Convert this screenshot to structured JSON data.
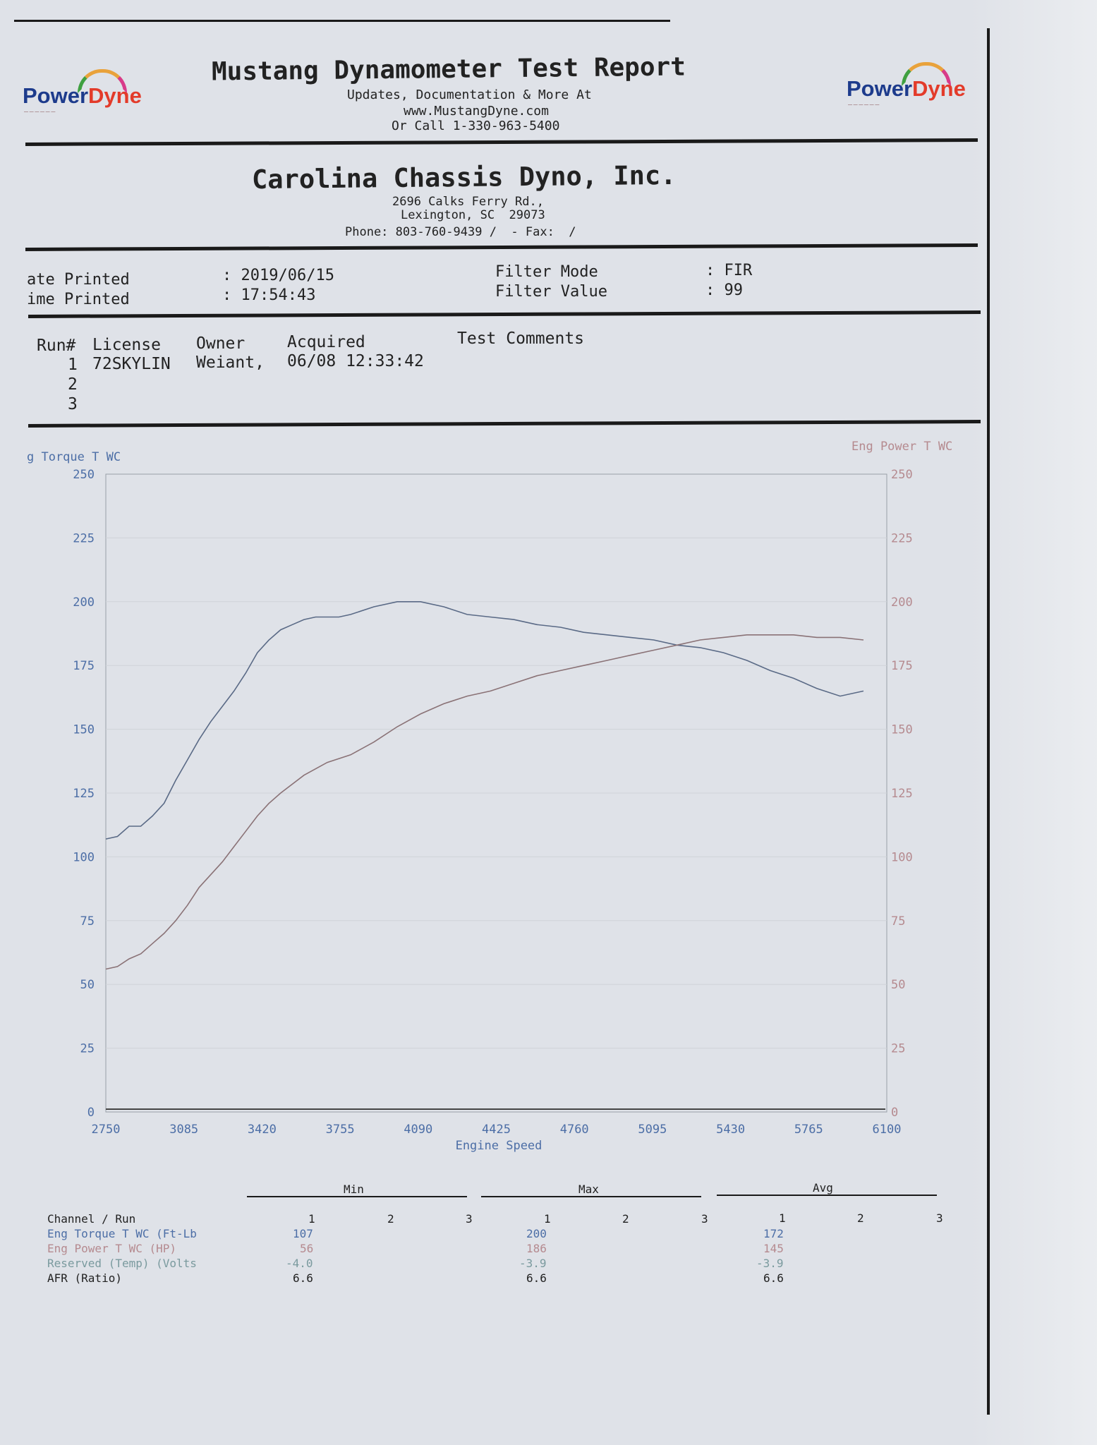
{
  "header": {
    "title": "Mustang Dynamometer Test Report",
    "line1": "Updates, Documentation & More At",
    "line2": "www.MustangDyne.com",
    "line3": "Or Call 1-330-963-5400",
    "logo_left": {
      "part1": "Power",
      "part2": "Dyne"
    },
    "logo_right": {
      "part1": "Power",
      "part2": "Dyne"
    }
  },
  "company": {
    "name": "Carolina Chassis Dyno, Inc.",
    "address1": "2696 Calks Ferry Rd.,",
    "address2": "Lexington, SC  29073",
    "phone": "Phone: 803-760-9439 /  - Fax:  /"
  },
  "meta": {
    "date_label": "ate Printed",
    "date_value": ": 2019/06/15",
    "time_label": "ime Printed",
    "time_value": ": 17:54:43",
    "filter_mode_label": "Filter Mode",
    "filter_mode_value": ": FIR",
    "filter_value_label": "Filter Value",
    "filter_value_value": ": 99"
  },
  "runs": {
    "headers": [
      "Run#",
      "License",
      "Owner",
      "Acquired",
      "Test Comments"
    ],
    "rows": [
      {
        "run": "1",
        "license": "72SKYLIN",
        "owner": "Weiant,",
        "acquired": "06/08 12:33:42"
      },
      {
        "run": "2",
        "license": "",
        "owner": "",
        "acquired": ""
      },
      {
        "run": "3",
        "license": "",
        "owner": "",
        "acquired": ""
      }
    ]
  },
  "chart_data": {
    "type": "line",
    "xlabel": "Engine Speed",
    "ylabel_left": "g Torque T WC",
    "ylabel_right": "Eng Power T WC",
    "x_ticks": [
      "2750",
      "3085",
      "3420",
      "3755",
      "4090",
      "4425",
      "4760",
      "5095",
      "5430",
      "5765",
      "6100"
    ],
    "y_ticks_left": [
      "0",
      "25",
      "50",
      "75",
      "100",
      "125",
      "150",
      "175",
      "200",
      "225",
      "250"
    ],
    "y_ticks_right": [
      "0",
      "25",
      "50",
      "75",
      "100",
      "125",
      "150",
      "175",
      "200",
      "225",
      "250"
    ],
    "xlim": [
      2750,
      6100
    ],
    "ylim": [
      0,
      250
    ],
    "grid": true,
    "series": [
      {
        "name": "Eng Torque T WC",
        "color": "#5a6a86",
        "x": [
          2750,
          2800,
          2850,
          2900,
          2950,
          3000,
          3050,
          3100,
          3150,
          3200,
          3250,
          3300,
          3350,
          3400,
          3450,
          3500,
          3550,
          3600,
          3650,
          3700,
          3750,
          3800,
          3900,
          4000,
          4100,
          4200,
          4300,
          4400,
          4500,
          4600,
          4700,
          4800,
          4900,
          5000,
          5100,
          5200,
          5300,
          5400,
          5500,
          5600,
          5700,
          5800,
          5900,
          6000
        ],
        "y": [
          107,
          108,
          112,
          112,
          116,
          121,
          130,
          138,
          146,
          153,
          159,
          165,
          172,
          180,
          185,
          189,
          191,
          193,
          194,
          194,
          194,
          195,
          198,
          200,
          200,
          198,
          195,
          194,
          193,
          191,
          190,
          188,
          187,
          186,
          185,
          183,
          182,
          180,
          177,
          173,
          170,
          166,
          163,
          165
        ]
      },
      {
        "name": "Eng Power T WC",
        "color": "#8a7276",
        "x": [
          2750,
          2800,
          2850,
          2900,
          2950,
          3000,
          3050,
          3100,
          3150,
          3200,
          3250,
          3300,
          3350,
          3400,
          3450,
          3500,
          3600,
          3700,
          3800,
          3900,
          4000,
          4100,
          4200,
          4300,
          4400,
          4500,
          4600,
          4700,
          4800,
          4900,
          5000,
          5100,
          5200,
          5300,
          5400,
          5500,
          5600,
          5700,
          5800,
          5900,
          6000
        ],
        "y": [
          56,
          57,
          60,
          62,
          66,
          70,
          75,
          81,
          88,
          93,
          98,
          104,
          110,
          116,
          121,
          125,
          132,
          137,
          140,
          145,
          151,
          156,
          160,
          163,
          165,
          168,
          171,
          173,
          175,
          177,
          179,
          181,
          183,
          185,
          186,
          187,
          187,
          187,
          186,
          186,
          185
        ]
      }
    ]
  },
  "stats": {
    "groups": [
      "Min",
      "Max",
      "Avg"
    ],
    "header_label": "Channel / Run",
    "run_labels": [
      "1",
      "2",
      "3"
    ],
    "rows": [
      {
        "label": "Eng Torque T WC (Ft-Lb",
        "min": "107",
        "max": "200",
        "avg": "172"
      },
      {
        "label": "Eng Power T WC (HP)",
        "min": "56",
        "max": "186",
        "avg": "145"
      },
      {
        "label": "Reserved (Temp) (Volts",
        "min": "-4.0",
        "max": "-3.9",
        "avg": "-3.9"
      },
      {
        "label": "AFR (Ratio)",
        "min": "6.6",
        "max": "6.6",
        "avg": "6.6"
      }
    ]
  }
}
